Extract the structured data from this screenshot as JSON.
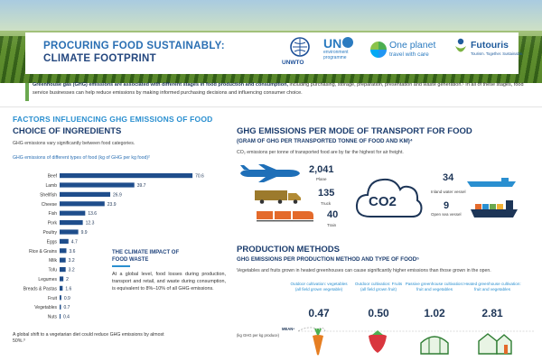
{
  "header": {
    "title_line1": "PROCURING FOOD SUSTAINABLY:",
    "title_line2": "CLIMATE FOOTPRINT",
    "logos": {
      "unwto": "UNWTO",
      "unep_big": "UN",
      "unep_small": "environment programme",
      "oneplanet_big": "One planet",
      "oneplanet_small": "travel with care",
      "futouris_big": "Futouris",
      "futouris_small": "Tourism. Together. Sustainable."
    }
  },
  "intro": {
    "bold": "Greenhouse gas (GHG) emissions are associated with different stages in food production and consumption,",
    "rest": " including purchasing, storage, preparation, presentation and waste generation.¹ In all of these stages, food service businesses can help reduce emissions by making informed purchasing decisions and influencing consumer choice."
  },
  "factors": {
    "title": "FACTORS INFLUENCING GHG EMISSIONS OF FOOD",
    "choice_title": "CHOICE OF INGREDIENTS",
    "choice_sub": "GHG emissions vary significantly between food categories.",
    "chart_caption": "GHG emissions of different types of food (kg of GHG per kg food)²"
  },
  "chart_data": {
    "type": "bar",
    "orientation": "horizontal",
    "title": "GHG emissions of different types of food (kg of GHG per kg food)",
    "categories": [
      "Beef",
      "Lamb",
      "Shellfish",
      "Cheese",
      "Fish",
      "Pork",
      "Poultry",
      "Eggs",
      "Rice & Grains",
      "Milk",
      "Tofu",
      "Legumes",
      "Breads & Pastas",
      "Fruit",
      "Vegetables",
      "Nuts"
    ],
    "values": [
      70.6,
      39.7,
      26.9,
      23.9,
      13.6,
      12.3,
      9.9,
      4.7,
      3.6,
      3.2,
      3.2,
      2.0,
      1.6,
      0.9,
      0.7,
      0.4
    ],
    "xlim": [
      0,
      72
    ]
  },
  "note": {
    "title": "THE CLIMATE IMPACT OF FOOD WASTE",
    "body": "At a global level, food losses during production, transport and retail, and waste during consumption, is equivalent to 8%–10% of all GHG emissions."
  },
  "bottom_note": "A global shift to a vegetarian diet could reduce GHG emissions by almost 50%.³",
  "transport": {
    "title": "GHG EMISSIONS PER MODE OF TRANSPORT FOR FOOD",
    "subtitle": "(GRAM OF GHG PER TRANSPORTED TONNE OF FOOD AND KM)⁴",
    "note": "CO₂ emissions per tonne of transported food are by far the highest for air freight.",
    "co2_label": "CO2",
    "modes": [
      {
        "value": "2,041",
        "label": "Plane"
      },
      {
        "value": "135",
        "label": "Truck"
      },
      {
        "value": "40",
        "label": "Train"
      },
      {
        "value": "34",
        "label": "Inland water vessel"
      },
      {
        "value": "9",
        "label": "Open sea vessel"
      }
    ]
  },
  "production": {
    "title": "PRODUCTION METHODS",
    "subtitle": "GHG EMISSIONS PER PRODUCTION METHOD AND TYPE OF FOOD⁵",
    "note": "Vegetables and fruits grown in heated greenhouses can cause significantly higher emissions than those grown in the open.",
    "axis_label": "(kg GHG per kg produce)",
    "mean_label": "MEAN⁶",
    "methods": [
      {
        "line1": "Outdoor cultivation: vegetables",
        "line2": "(all field grown vegetable)",
        "value": "0.47"
      },
      {
        "line1": "Outdoor cultivation: Fruits",
        "line2": "(all field grown fruit)",
        "value": "0.50"
      },
      {
        "line1": "Passive greenhouse cultivation:",
        "line2": "fruit and vegetables",
        "value": "1.02"
      },
      {
        "line1": "Heated greenhouse cultivation:",
        "line2": "fruit and vegetables",
        "value": "2.81"
      }
    ]
  },
  "colors": {
    "bar": "#1f4e8c",
    "accent": "#2a8fd0",
    "dark": "#1d3557"
  }
}
